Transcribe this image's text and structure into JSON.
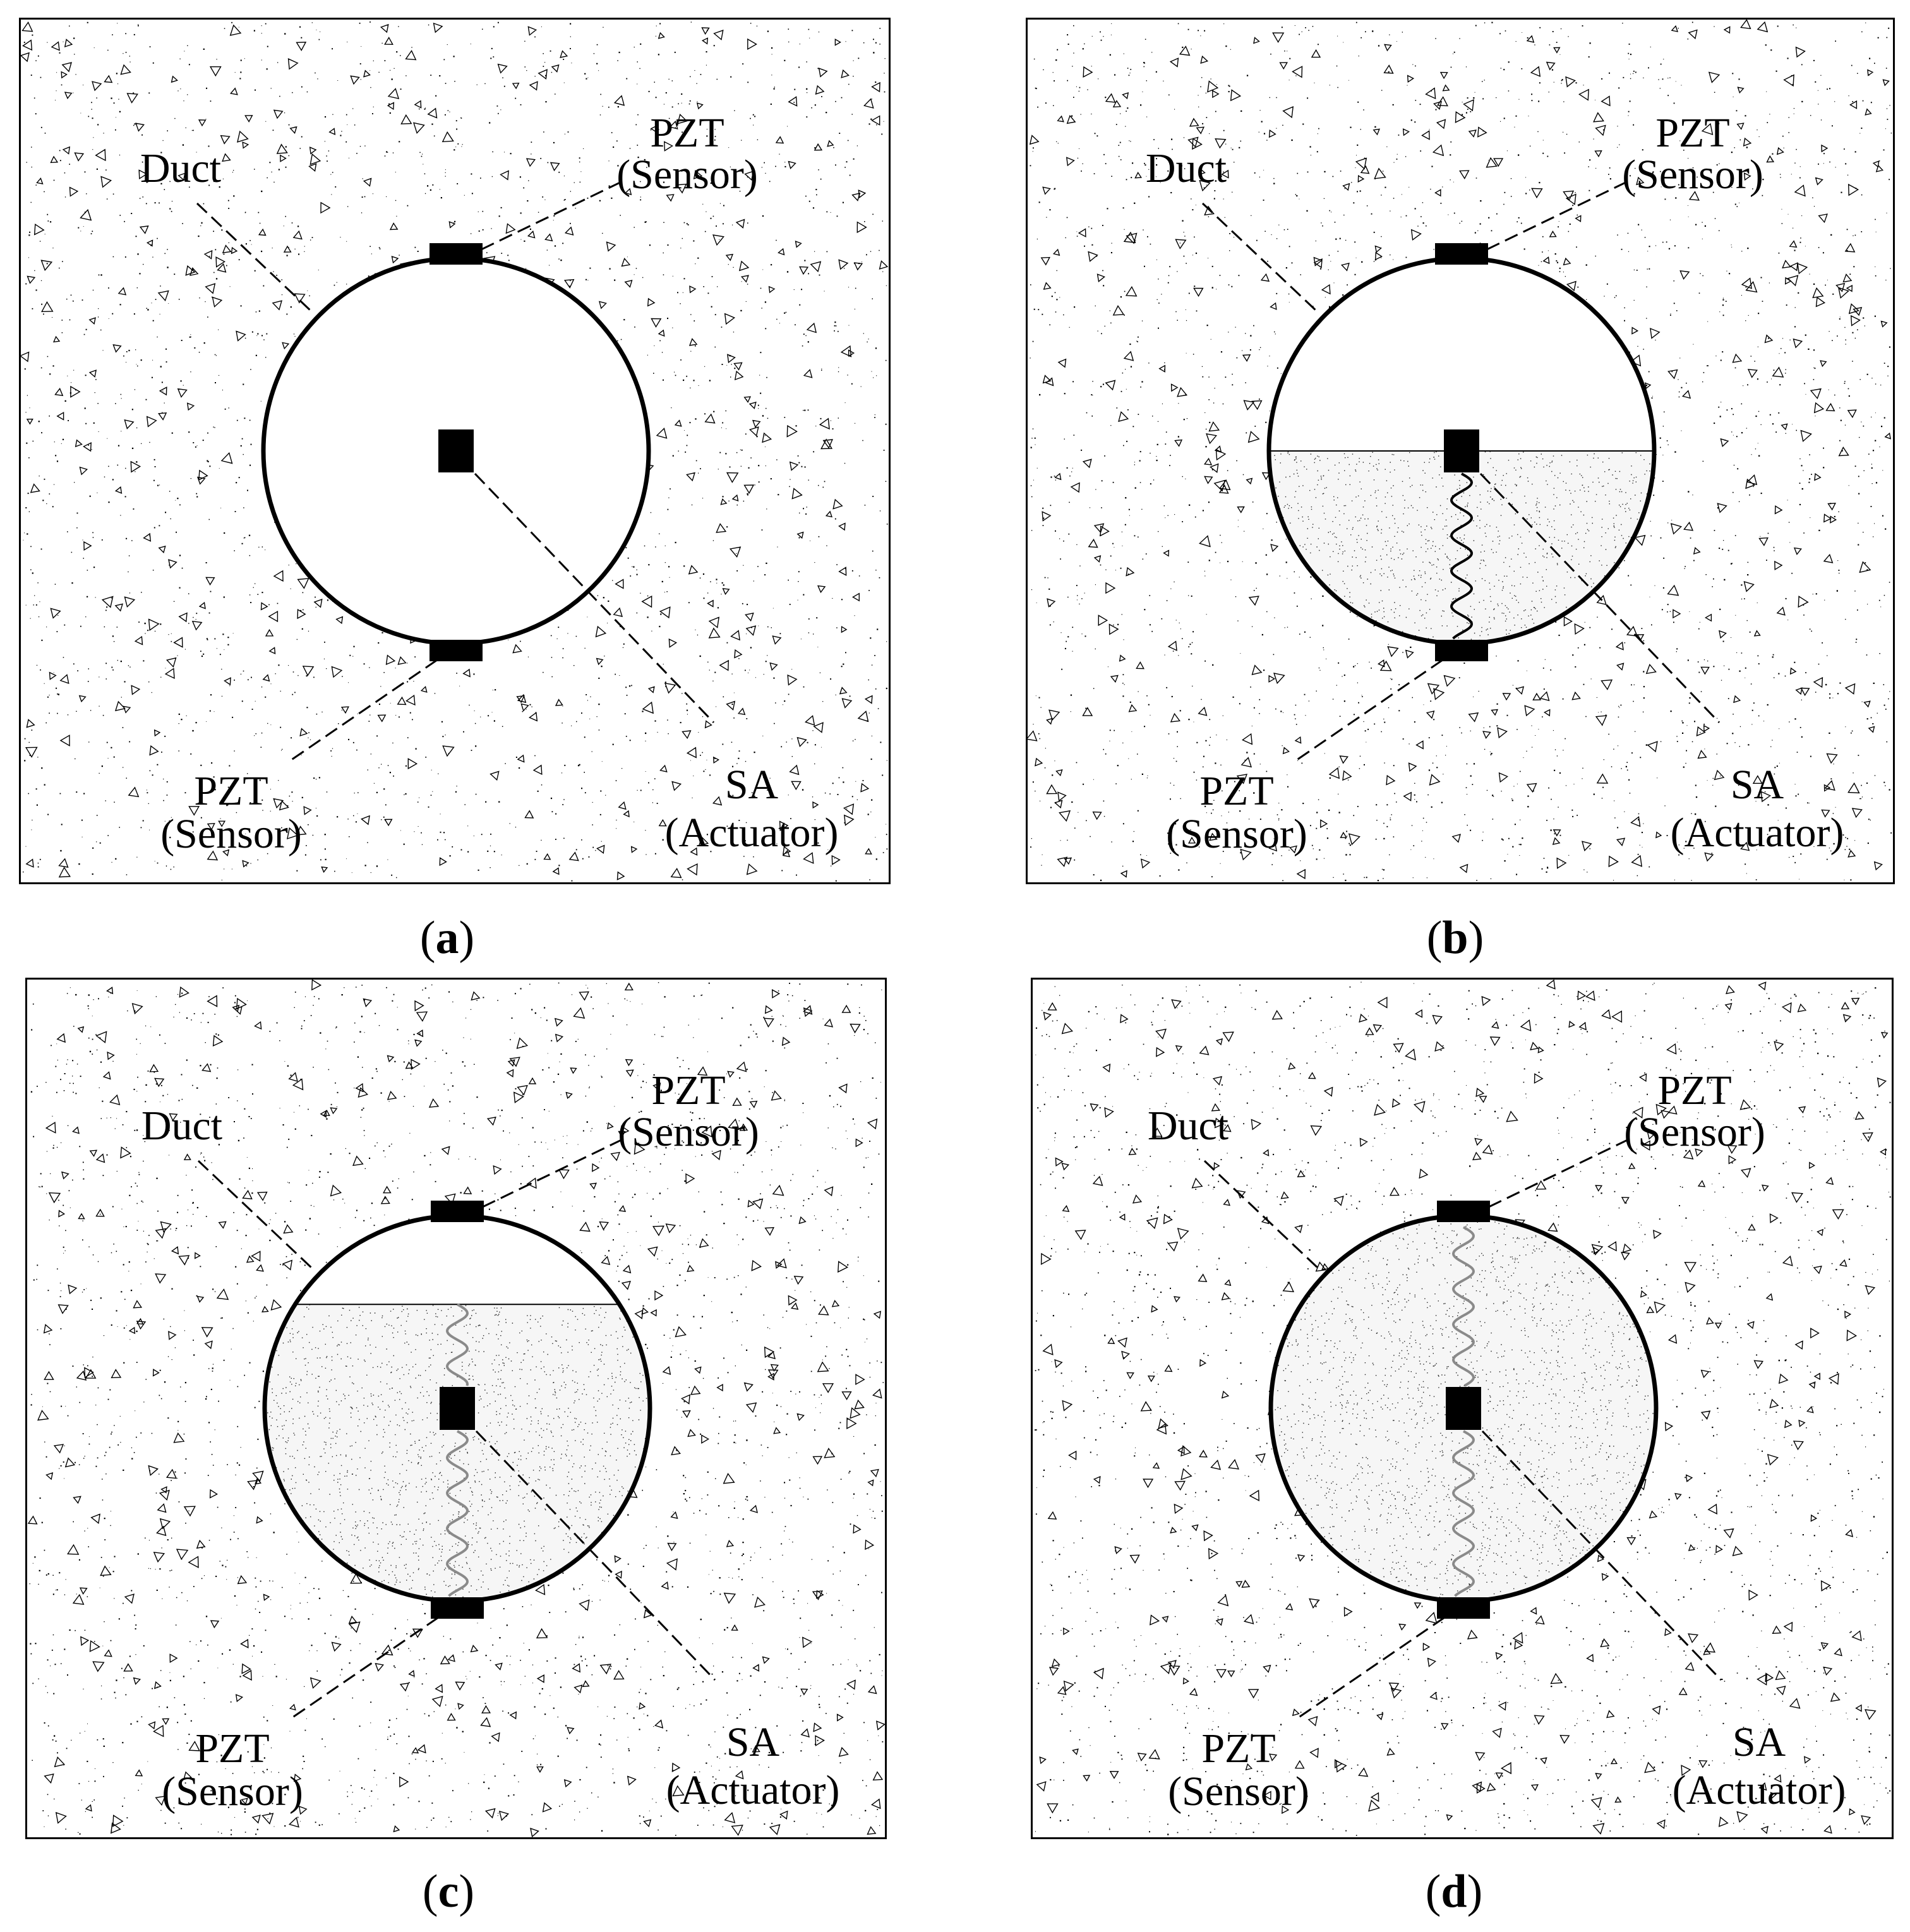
{
  "figure": {
    "panels": [
      {
        "id": "a",
        "caption_open": "(",
        "caption_letter": "a",
        "caption_close": ")",
        "fill_level": 0,
        "wave_segments": [],
        "labels": {
          "duct": "Duct",
          "pzt_top": "PZT",
          "pzt_top_role": "(Sensor)",
          "pzt_bottom": "PZT",
          "pzt_bottom_role": "(Sensor)",
          "sa": "SA",
          "sa_role": "(Actuator)"
        }
      },
      {
        "id": "b",
        "caption_open": "(",
        "caption_letter": "b",
        "caption_close": ")",
        "fill_level": 0.5,
        "wave_segments": [
          {
            "from": "center",
            "to": "bottom",
            "color": "#000000"
          }
        ],
        "labels": {
          "duct": "Duct",
          "pzt_top": "PZT",
          "pzt_top_role": "(Sensor)",
          "pzt_bottom": "PZT",
          "pzt_bottom_role": "(Sensor)",
          "sa": "SA",
          "sa_role": "(Actuator)"
        }
      },
      {
        "id": "c",
        "caption_open": "(",
        "caption_letter": "c",
        "caption_close": ")",
        "fill_level": 0.77,
        "wave_segments": [
          {
            "from": "fill_line",
            "to": "center",
            "color": "#8a8a8a"
          },
          {
            "from": "center",
            "to": "bottom",
            "color": "#8a8a8a"
          }
        ],
        "labels": {
          "duct": "Duct",
          "pzt_top": "PZT",
          "pzt_top_role": "(Sensor)",
          "pzt_bottom": "PZT",
          "pzt_bottom_role": "(Sensor)",
          "sa": "SA",
          "sa_role": "(Actuator)"
        }
      },
      {
        "id": "d",
        "caption_open": "(",
        "caption_letter": "d",
        "caption_close": ")",
        "fill_level": 1,
        "wave_segments": [
          {
            "from": "top",
            "to": "center",
            "color": "#8a8a8a"
          },
          {
            "from": "center",
            "to": "bottom",
            "color": "#8a8a8a"
          }
        ],
        "labels": {
          "duct": "Duct",
          "pzt_top": "PZT",
          "pzt_top_role": "(Sensor)",
          "pzt_bottom": "PZT",
          "pzt_bottom_role": "(Sensor)",
          "sa": "SA",
          "sa_role": "(Actuator)"
        }
      }
    ]
  }
}
